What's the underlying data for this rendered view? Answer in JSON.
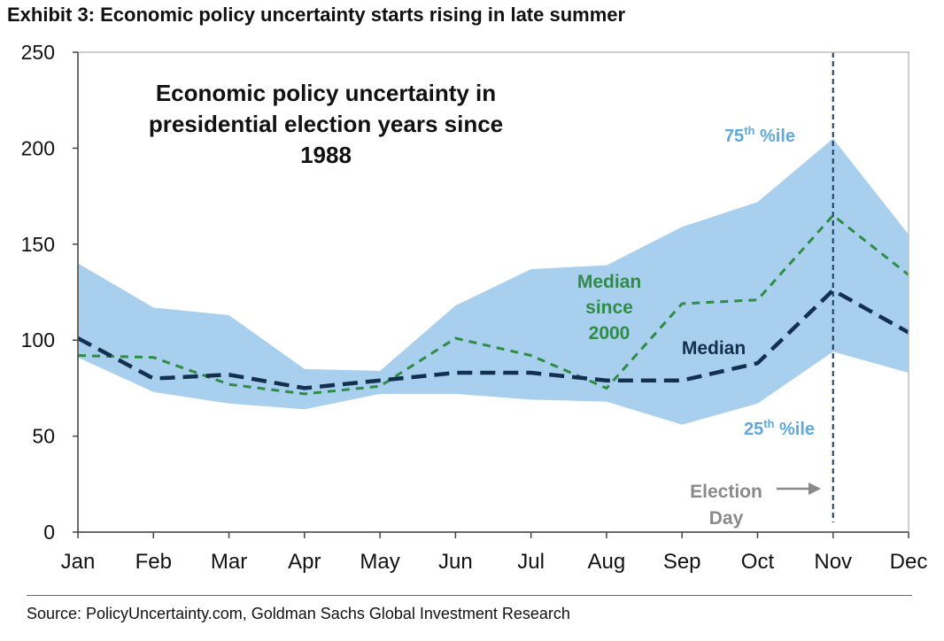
{
  "exhibit_title": "Exhibit 3: Economic policy uncertainty starts rising in late summer",
  "source": "Source: PolicyUncertainty.com, Goldman Sachs Global Investment Research",
  "colors": {
    "band": "#a8d0ee",
    "median": "#14304f",
    "median_since_2000": "#2e8c46",
    "band_label": "#5fa9dc",
    "election": "#8a8a8a",
    "vline": "#1c3b5e"
  },
  "chart_data": {
    "type": "area",
    "title": "Economic policy uncertainty in presidential election years since 1988",
    "inner_title_lines": [
      "Economic policy uncertainty in",
      "presidential election years since",
      "1988"
    ],
    "categories": [
      "Jan",
      "Feb",
      "Mar",
      "Apr",
      "May",
      "Jun",
      "Jul",
      "Aug",
      "Sep",
      "Oct",
      "Nov",
      "Dec"
    ],
    "ylim": [
      0,
      250
    ],
    "yticks": [
      0,
      50,
      100,
      150,
      200,
      250
    ],
    "ytick_labels": [
      "0",
      "50",
      "100",
      "150",
      "200",
      "250"
    ],
    "xlabel": "",
    "ylabel": "",
    "grid": false,
    "series": [
      {
        "name": "75th %ile",
        "role": "band_upper",
        "values": [
          140,
          117,
          113,
          85,
          84,
          118,
          137,
          139,
          159,
          172,
          205,
          155
        ]
      },
      {
        "name": "25th %ile",
        "role": "band_lower",
        "values": [
          91,
          73,
          67,
          64,
          72,
          72,
          69,
          68,
          56,
          67,
          94,
          83
        ]
      },
      {
        "name": "Median",
        "role": "median",
        "values": [
          101,
          80,
          82,
          75,
          79,
          83,
          83,
          79,
          79,
          88,
          126,
          104
        ]
      },
      {
        "name": "Median since 2000",
        "role": "median_since_2000",
        "values": [
          92,
          91,
          77,
          72,
          76,
          101,
          92,
          75,
          119,
          121,
          165,
          134
        ]
      }
    ],
    "annotations": {
      "p75_base": "75",
      "p75_sup": "th",
      "p75_suffix": " %ile",
      "p25_base": "25",
      "p25_sup": "th",
      "p25_suffix": " %ile",
      "median_label": "Median",
      "median_2000_lines": [
        "Median",
        "since",
        "2000"
      ],
      "election_lines": [
        "Election",
        "Day"
      ],
      "election_month": "Nov"
    }
  }
}
